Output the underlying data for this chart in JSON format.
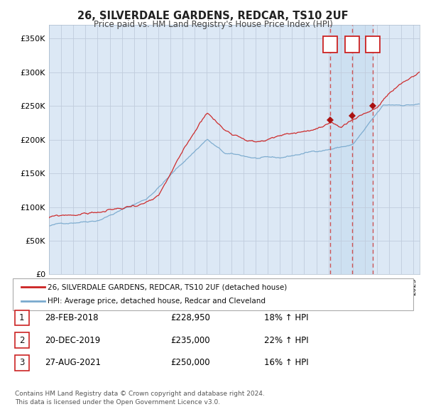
{
  "title": "26, SILVERDALE GARDENS, REDCAR, TS10 2UF",
  "subtitle": "Price paid vs. HM Land Registry's House Price Index (HPI)",
  "legend_label_red": "26, SILVERDALE GARDENS, REDCAR, TS10 2UF (detached house)",
  "legend_label_blue": "HPI: Average price, detached house, Redcar and Cleveland",
  "transactions": [
    {
      "num": 1,
      "date": "28-FEB-2018",
      "price": "£228,950",
      "pct": "18% ↑ HPI",
      "year": 2018.15
    },
    {
      "num": 2,
      "date": "20-DEC-2019",
      "price": "£235,000",
      "pct": "22% ↑ HPI",
      "year": 2019.97
    },
    {
      "num": 3,
      "date": "27-AUG-2021",
      "price": "£250,000",
      "pct": "16% ↑ HPI",
      "year": 2021.65
    }
  ],
  "transaction_marker_prices": [
    228950,
    235000,
    250000
  ],
  "footnote1": "Contains HM Land Registry data © Crown copyright and database right 2024.",
  "footnote2": "This data is licensed under the Open Government Licence v3.0.",
  "ylim": [
    0,
    370000
  ],
  "xlim_start": 1995,
  "xlim_end": 2025.5,
  "yticks": [
    0,
    50000,
    100000,
    150000,
    200000,
    250000,
    300000,
    350000
  ],
  "ytick_labels": [
    "£0",
    "£50K",
    "£100K",
    "£150K",
    "£200K",
    "£250K",
    "£300K",
    "£350K"
  ],
  "background_color": "#dce8f5",
  "plot_bg_color": "#dce8f5",
  "red_color": "#cc2222",
  "blue_color": "#7aaace",
  "grid_color": "#c8d8e8",
  "vline_color": "#cc4444",
  "shade_color": "#c8ddf0"
}
